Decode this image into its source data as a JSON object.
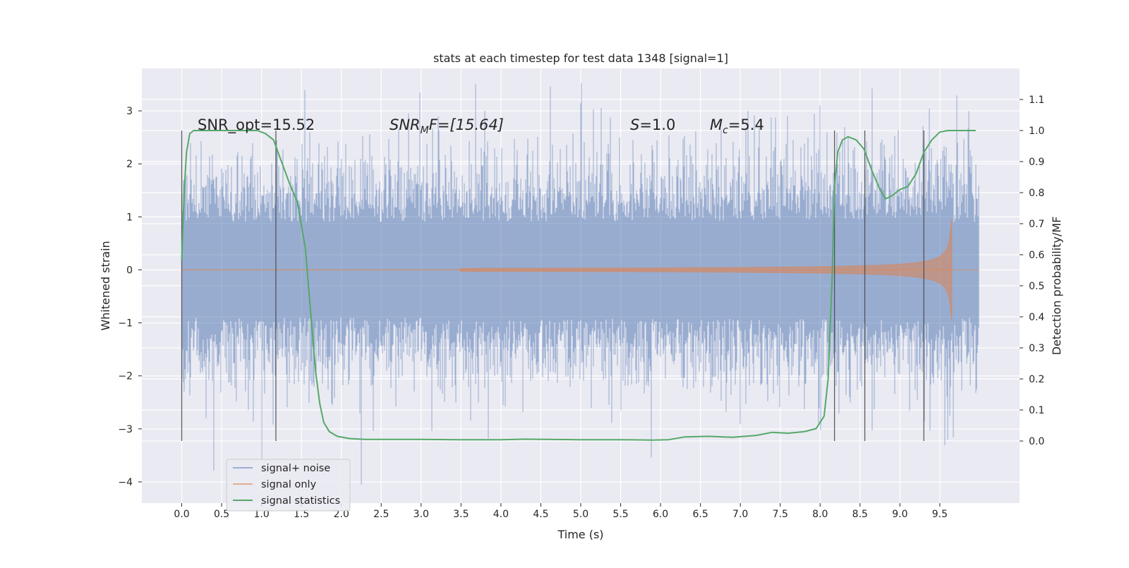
{
  "chart_data": {
    "type": "line",
    "title": "stats at each timestep for test data 1348 [signal=1]",
    "xlabel": "Time (s)",
    "ylabel_left": "Whitened strain",
    "ylabel_right": "Detection probability/MF",
    "xlim": [
      -0.5,
      10.5
    ],
    "ylim_left": [
      -4.4,
      3.8
    ],
    "ylim_right": [
      -0.2,
      1.2
    ],
    "x_ticks": [
      "0.0",
      "0.5",
      "1.0",
      "1.5",
      "2.0",
      "2.5",
      "3.0",
      "3.5",
      "4.0",
      "4.5",
      "5.0",
      "5.5",
      "6.0",
      "6.5",
      "7.0",
      "7.5",
      "8.0",
      "8.5",
      "9.0",
      "9.5"
    ],
    "y_left_ticks": [
      "3",
      "2",
      "1",
      "0",
      "−1",
      "−2",
      "−3",
      "−4"
    ],
    "y_left_tick_values": [
      3,
      2,
      1,
      0,
      -1,
      -2,
      -3,
      -4
    ],
    "y_right_ticks": [
      "1.1",
      "1.0",
      "0.9",
      "0.8",
      "0.7",
      "0.6",
      "0.5",
      "0.4",
      "0.3",
      "0.2",
      "0.1",
      "0.0"
    ],
    "y_right_tick_values": [
      1.1,
      1.0,
      0.9,
      0.8,
      0.7,
      0.6,
      0.5,
      0.4,
      0.3,
      0.2,
      0.1,
      0.0
    ],
    "grid": true,
    "legend_placement": "lower-left",
    "annotations": {
      "snr_opt": "SNR_opt=15.52",
      "snr_mf_prefix": "SNR",
      "snr_mf_sub": "M",
      "snr_mf_rest": "F=[15.64]",
      "s_prefix": "S",
      "s_rest": "=1.0",
      "mc_prefix": "M",
      "mc_sub": "c",
      "mc_rest": "=5.4"
    },
    "vertical_lines_x": [
      0.0,
      1.18,
      8.18,
      8.56,
      9.3
    ],
    "series": [
      {
        "name": "signal+ noise",
        "color": "#4c72b0",
        "axis": "left",
        "x_range": [
          0.0,
          9.99
        ],
        "spikes": [
          {
            "x": 1.0,
            "y": -3.6
          },
          {
            "x": 2.25,
            "y": -4.05
          },
          {
            "x": 3.68,
            "y": 3.5
          },
          {
            "x": 5.0,
            "y": 3.15
          },
          {
            "x": 8.0,
            "y": 3.1
          },
          {
            "x": 9.6,
            "y": -3.2
          }
        ]
      },
      {
        "name": "signal only",
        "color": "#dd8452",
        "axis": "left",
        "chirp_start": 3.5,
        "merger": 9.65,
        "peak_amplitude": 1.3
      },
      {
        "name": "signal statistics",
        "color": "#55a868",
        "axis": "right",
        "x": [
          0.0,
          0.03,
          0.06,
          0.1,
          0.15,
          0.22,
          0.3,
          0.5,
          0.7,
          0.85,
          0.95,
          1.05,
          1.15,
          1.25,
          1.35,
          1.45,
          1.55,
          1.62,
          1.68,
          1.73,
          1.78,
          1.85,
          1.95,
          2.1,
          2.3,
          2.6,
          3.0,
          3.5,
          4.0,
          4.3,
          4.6,
          5.0,
          5.5,
          5.9,
          6.1,
          6.3,
          6.6,
          6.9,
          7.2,
          7.4,
          7.6,
          7.8,
          7.95,
          8.05,
          8.1,
          8.15,
          8.18,
          8.22,
          8.28,
          8.35,
          8.45,
          8.55,
          8.65,
          8.75,
          8.82,
          8.9,
          9.0,
          9.1,
          9.2,
          9.3,
          9.4,
          9.5,
          9.6,
          9.8,
          9.95
        ],
        "y": [
          0.58,
          0.8,
          0.93,
          0.99,
          1.0,
          1.0,
          1.0,
          1.0,
          1.0,
          1.0,
          1.0,
          0.99,
          0.97,
          0.9,
          0.83,
          0.77,
          0.62,
          0.4,
          0.22,
          0.12,
          0.06,
          0.03,
          0.015,
          0.008,
          0.005,
          0.005,
          0.005,
          0.004,
          0.004,
          0.006,
          0.005,
          0.004,
          0.004,
          0.003,
          0.004,
          0.013,
          0.015,
          0.012,
          0.018,
          0.028,
          0.025,
          0.03,
          0.04,
          0.08,
          0.2,
          0.52,
          0.82,
          0.93,
          0.97,
          0.98,
          0.97,
          0.94,
          0.87,
          0.81,
          0.78,
          0.79,
          0.81,
          0.82,
          0.86,
          0.93,
          0.97,
          0.995,
          1.0,
          1.0,
          1.0
        ]
      }
    ]
  }
}
